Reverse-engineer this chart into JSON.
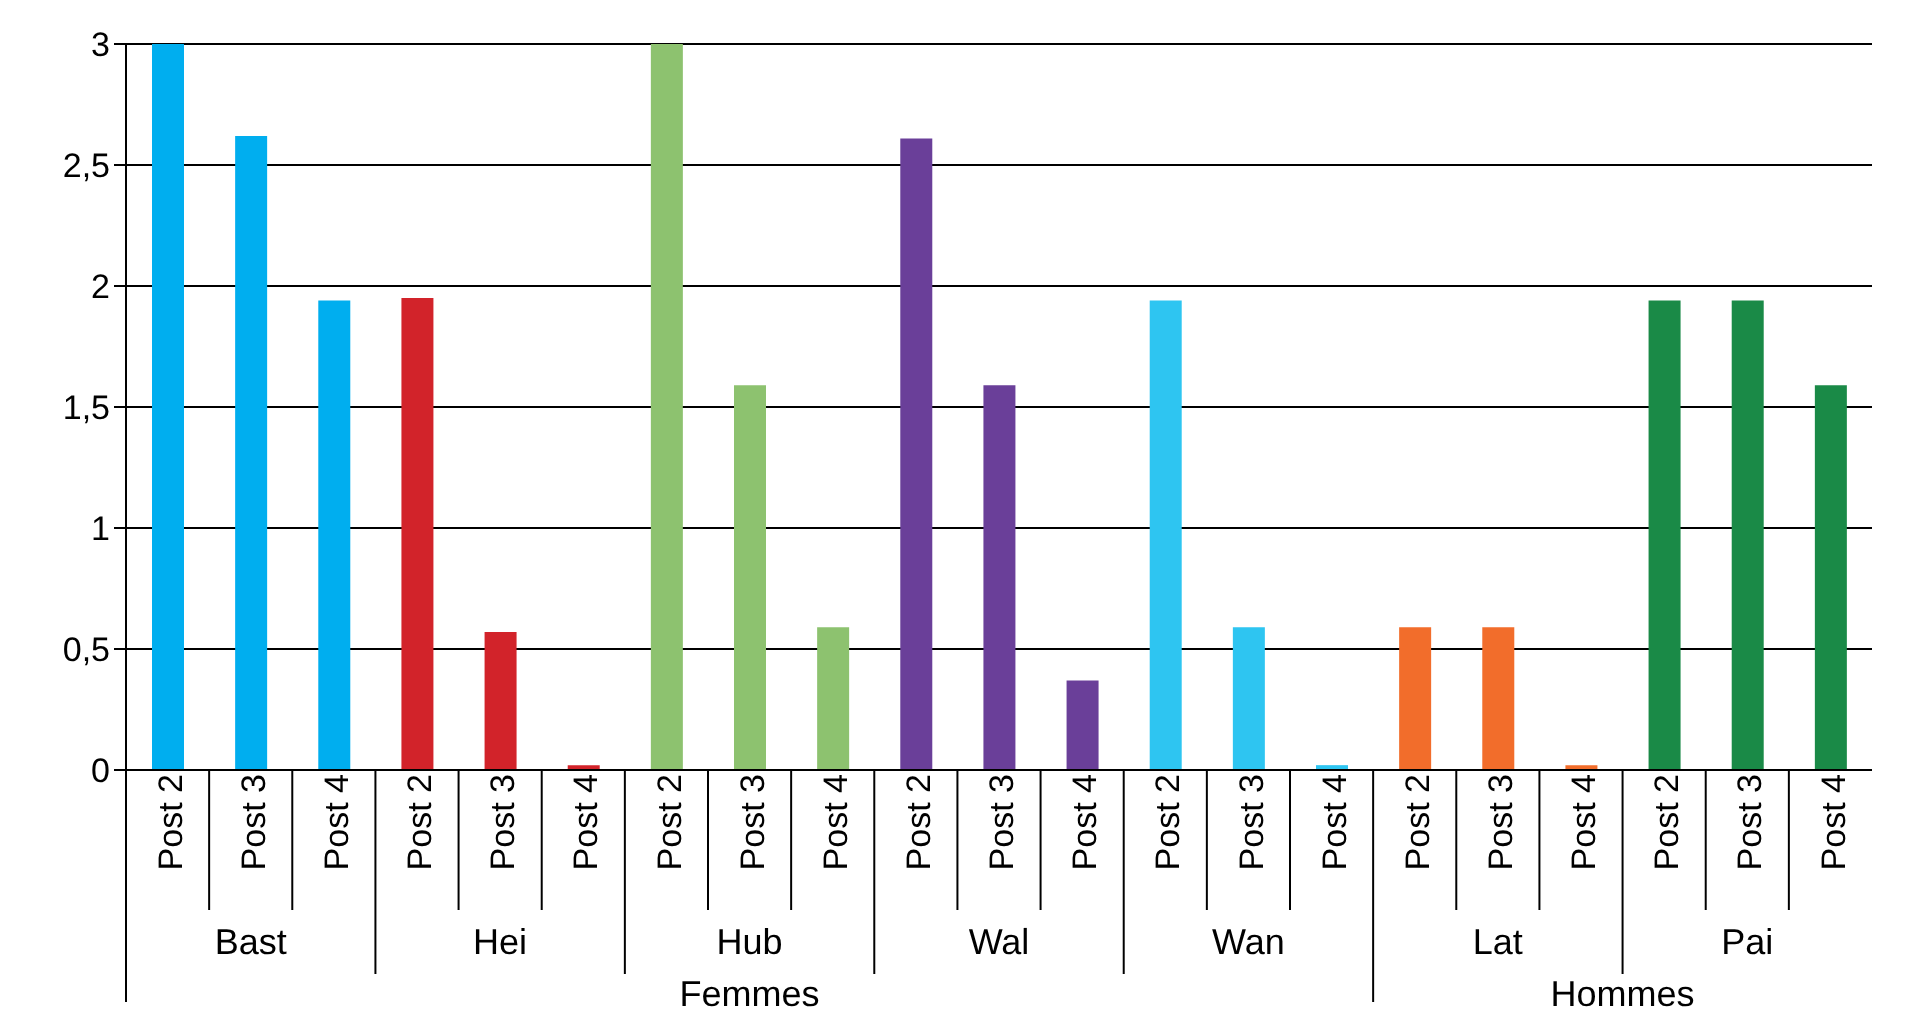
{
  "chart_data": {
    "type": "bar",
    "categories": [
      "Post 2",
      "Post 3",
      "Post 4",
      "Post 2",
      "Post 3",
      "Post 4",
      "Post 2",
      "Post 3",
      "Post 4",
      "Post 2",
      "Post 3",
      "Post 4",
      "Post 2",
      "Post 3",
      "Post 4",
      "Post 2",
      "Post 3",
      "Post 4",
      "Post 2",
      "Post 3",
      "Post 4"
    ],
    "series": [
      {
        "color": "#00aeef",
        "values": [
          3,
          2.62,
          1.94,
          null,
          null,
          null,
          null,
          null,
          null,
          null,
          null,
          null,
          null,
          null,
          null,
          null,
          null,
          null,
          null,
          null,
          null
        ]
      },
      {
        "color": "#d2232a",
        "values": [
          null,
          null,
          null,
          1.95,
          0.57,
          0.02,
          null,
          null,
          null,
          null,
          null,
          null,
          null,
          null,
          null,
          null,
          null,
          null,
          null,
          null,
          null
        ]
      },
      {
        "color": "#8dc26f",
        "values": [
          null,
          null,
          null,
          null,
          null,
          null,
          3,
          1.59,
          0.59,
          null,
          null,
          null,
          null,
          null,
          null,
          null,
          null,
          null,
          null,
          null,
          null
        ]
      },
      {
        "color": "#6a3f99",
        "values": [
          null,
          null,
          null,
          null,
          null,
          null,
          null,
          null,
          null,
          2.61,
          1.59,
          0.37,
          null,
          null,
          null,
          null,
          null,
          null,
          null,
          null,
          null
        ]
      },
      {
        "color": "#2ec5f1",
        "values": [
          null,
          null,
          null,
          null,
          null,
          null,
          null,
          null,
          null,
          null,
          null,
          null,
          1.94,
          0.59,
          0.02,
          null,
          null,
          null,
          null,
          null,
          null
        ]
      },
      {
        "color": "#f26d2b",
        "values": [
          null,
          null,
          null,
          null,
          null,
          null,
          null,
          null,
          null,
          null,
          null,
          null,
          null,
          null,
          null,
          0.59,
          0.59,
          0.02,
          null,
          null,
          null
        ]
      },
      {
        "color": "#1a8a47",
        "values": [
          null,
          null,
          null,
          null,
          null,
          null,
          null,
          null,
          null,
          null,
          null,
          null,
          null,
          null,
          null,
          null,
          null,
          null,
          1.94,
          1.94,
          1.59
        ]
      }
    ],
    "annotations": [
      "Bast",
      "Hei",
      "Hub",
      "Wal",
      "Wan",
      "Lat",
      "Pai",
      "Femmes",
      "Hommes"
    ],
    "ylim": [
      0,
      3
    ],
    "yticks": [
      0,
      {
        "value": 0.5,
        "label": "0,5"
      },
      1,
      {
        "value": 1.5,
        "label": "1,5"
      },
      2,
      {
        "value": 2.5,
        "label": "2,5"
      },
      3
    ],
    "grid": "y",
    "legend": false
  }
}
